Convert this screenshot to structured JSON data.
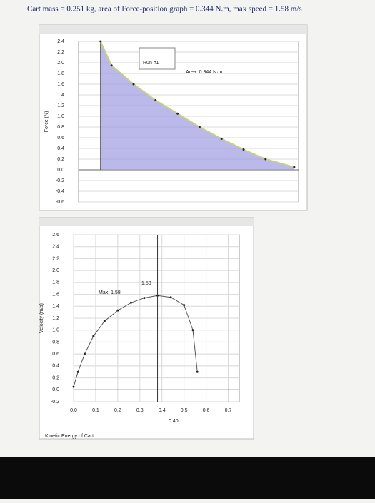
{
  "caption": "Cart mass = 0.251 kg, area of Force-position graph = 0.344 N.m, max speed = 1.58 m/s",
  "chart_data": [
    {
      "type": "area",
      "y_label": "Force (N)",
      "legend": "Run #1",
      "annotations": [
        "Area: 0.344 N·m"
      ],
      "x": [
        0.1,
        0.15,
        0.25,
        0.35,
        0.45,
        0.55,
        0.65,
        0.75,
        0.85,
        0.98
      ],
      "series": [
        {
          "name": "Run #1",
          "color": "#9d9be0",
          "values": [
            2.4,
            1.95,
            1.6,
            1.3,
            1.05,
            0.8,
            0.58,
            0.38,
            0.2,
            0.05
          ]
        }
      ],
      "xlim": [
        0,
        1
      ],
      "ylim": [
        -0.6,
        2.4
      ],
      "yticks": [
        {
          "value": 2.4,
          "label": "2.4"
        },
        {
          "value": 2.2,
          "label": "2.2"
        },
        {
          "value": 2,
          "label": "2.0"
        },
        {
          "value": 1.8,
          "label": "1.8"
        },
        {
          "value": 1.6,
          "label": "1.6"
        },
        {
          "value": 1.4,
          "label": "1.4"
        },
        {
          "value": 1.2,
          "label": "1.2"
        },
        {
          "value": 1,
          "label": "1.0"
        },
        {
          "value": 0.8,
          "label": "0.8"
        },
        {
          "value": 0.6,
          "label": "0.6"
        },
        {
          "value": 0.4,
          "label": "0.4"
        },
        {
          "value": 0.2,
          "label": "0.2"
        },
        {
          "value": 0,
          "label": "0.0"
        },
        {
          "value": -0.2,
          "label": "-0.2"
        },
        {
          "value": -0.4,
          "label": "-0.4"
        },
        {
          "value": -0.6,
          "label": "-0.6"
        }
      ],
      "grid": true
    },
    {
      "type": "line",
      "y_label": "Velocity (m/s)",
      "x_label": "Kinetic Energy of Cart",
      "annotations": [
        "Max: 1.58",
        "1.58",
        "0.40"
      ],
      "x": [
        0.0,
        0.02,
        0.05,
        0.09,
        0.14,
        0.2,
        0.26,
        0.32,
        0.38,
        0.44,
        0.5,
        0.54,
        0.56
      ],
      "series": [
        {
          "name": "Run #1",
          "color": "#555555",
          "values": [
            0.05,
            0.3,
            0.6,
            0.9,
            1.15,
            1.33,
            1.46,
            1.54,
            1.58,
            1.55,
            1.42,
            1.0,
            0.3
          ]
        }
      ],
      "xlim": [
        0,
        0.75
      ],
      "ylim": [
        -0.2,
        2.6
      ],
      "xticks": [
        {
          "value": 0,
          "label": "0.0"
        },
        0.1,
        0.2,
        0.3,
        0.4,
        0.5,
        0.6,
        0.7
      ],
      "yticks": [
        {
          "value": 2.6,
          "label": "2.6"
        },
        {
          "value": 2.4,
          "label": "2.4"
        },
        {
          "value": 2.2,
          "label": "2.2"
        },
        {
          "value": 2,
          "label": "2.0"
        },
        {
          "value": 1.8,
          "label": "1.8"
        },
        {
          "value": 1.6,
          "label": "1.6"
        },
        {
          "value": 1.4,
          "label": "1.4"
        },
        {
          "value": 1.2,
          "label": "1.2"
        },
        {
          "value": 1,
          "label": "1.0"
        },
        {
          "value": 0.8,
          "label": "0.8"
        },
        {
          "value": 0.6,
          "label": "0.6"
        },
        {
          "value": 0.4,
          "label": "0.4"
        },
        {
          "value": 0.2,
          "label": "0.2"
        },
        {
          "value": 0,
          "label": "0.0"
        },
        {
          "value": -0.2,
          "label": "-0.2"
        }
      ],
      "grid": true
    }
  ]
}
